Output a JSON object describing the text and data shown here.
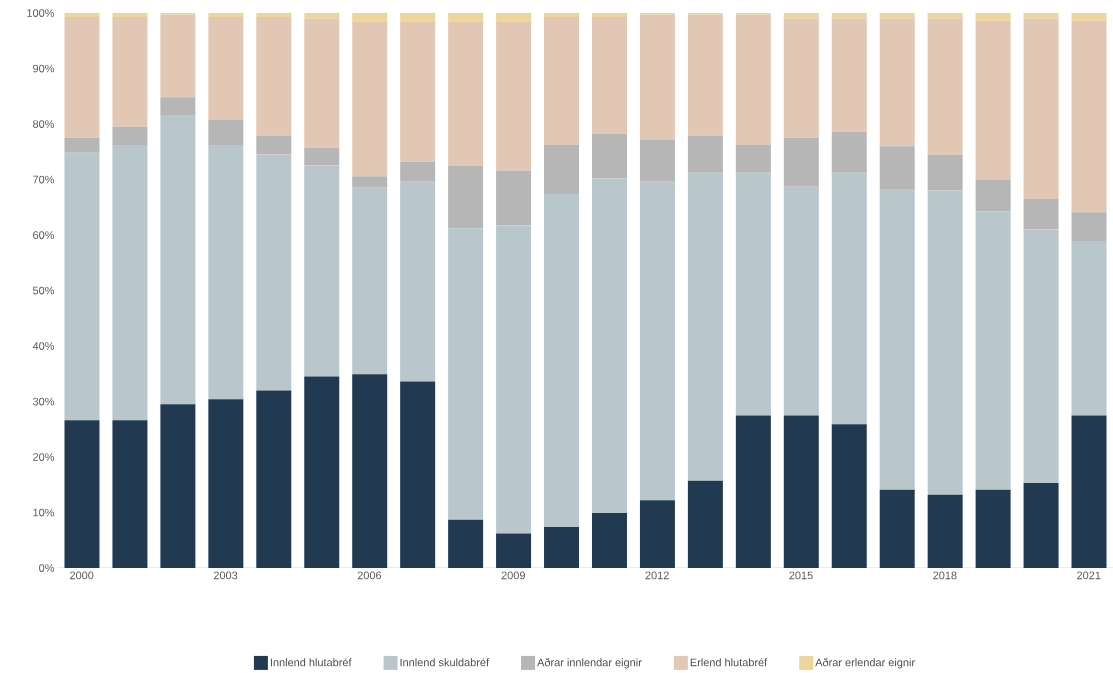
{
  "chart_data": {
    "type": "bar",
    "stacked": true,
    "categories": [
      "2000",
      null,
      null,
      "2003",
      null,
      null,
      "2006",
      null,
      null,
      "2009",
      null,
      null,
      "2012",
      null,
      null,
      "2015",
      null,
      null,
      "2018",
      null,
      null,
      "2021"
    ],
    "series": [
      {
        "name": "Innlend hlutabréf",
        "color": "#223a51",
        "values": [
          26.6,
          26.6,
          29.5,
          30.4,
          32.0,
          34.5,
          34.9,
          33.6,
          8.7,
          6.2,
          7.4,
          9.9,
          12.2,
          15.7,
          27.5,
          27.5,
          25.9,
          14.1,
          13.2,
          14.1,
          15.3,
          27.5
        ]
      },
      {
        "name": "Innlend skuldabréf",
        "color": "#b9c6cc",
        "values": [
          48.2,
          49.6,
          52.1,
          45.8,
          42.5,
          38.0,
          33.6,
          36.0,
          52.5,
          55.5,
          60.0,
          60.3,
          57.4,
          55.5,
          43.7,
          41.2,
          45.3,
          54.2,
          54.8,
          50.2,
          45.7,
          31.4
        ]
      },
      {
        "name": "Aðrar innlendar eignir",
        "color": "#b5b6b5",
        "values": [
          2.7,
          3.3,
          3.2,
          4.5,
          3.4,
          3.2,
          2.1,
          3.6,
          11.3,
          9.9,
          8.8,
          8.0,
          7.5,
          6.7,
          5.0,
          8.8,
          7.4,
          7.7,
          6.4,
          5.6,
          5.5,
          5.2
        ]
      },
      {
        "name": "Erlend hlutabréf",
        "color": "#e3c7b5",
        "values": [
          21.8,
          19.8,
          14.9,
          18.6,
          21.4,
          23.3,
          27.9,
          25.3,
          25.9,
          26.9,
          23.1,
          21.1,
          22.6,
          21.8,
          23.5,
          21.5,
          20.4,
          23.0,
          24.6,
          28.7,
          32.5,
          34.5
        ]
      },
      {
        "name": "Aðrar erlendar eignir",
        "color": "#edd59c",
        "values": [
          0.7,
          0.7,
          0.3,
          0.7,
          0.7,
          1.0,
          1.5,
          1.5,
          1.6,
          1.5,
          0.7,
          0.7,
          0.3,
          0.3,
          0.3,
          1.0,
          1.0,
          1.0,
          1.0,
          1.4,
          1.0,
          1.4
        ]
      }
    ],
    "ylim": [
      0,
      100
    ],
    "yticks": [
      {
        "value": 0,
        "label": "0%"
      },
      {
        "value": 10,
        "label": "10%"
      },
      {
        "value": 20,
        "label": "20%"
      },
      {
        "value": 30,
        "label": "30%"
      },
      {
        "value": 40,
        "label": "40%"
      },
      {
        "value": 50,
        "label": "50%"
      },
      {
        "value": 60,
        "label": "60%"
      },
      {
        "value": 70,
        "label": "70%"
      },
      {
        "value": 80,
        "label": "80%"
      },
      {
        "value": 90,
        "label": "90%"
      },
      {
        "value": 100,
        "label": "100%"
      }
    ],
    "legend": "bottom"
  }
}
